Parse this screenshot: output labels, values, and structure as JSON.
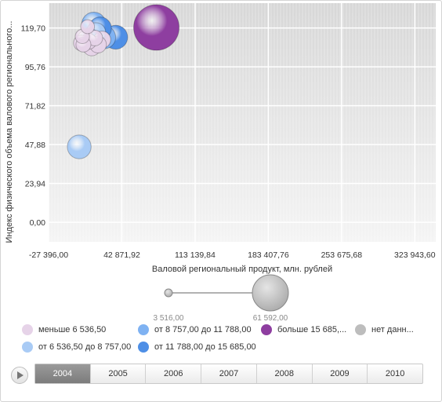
{
  "chart_data": {
    "type": "scatter",
    "xlabel": "Валовой региональный продукт, млн. рублей",
    "ylabel": "Индекс физического объема валового регионального...",
    "x_ticks": [
      "-27 396,00",
      "42 871,92",
      "113 139,84",
      "183 407,76",
      "253 675,68",
      "323 943,60"
    ],
    "x_tick_values": [
      -27396,
      42871.92,
      113139.84,
      183407.76,
      253675.68,
      323943.6
    ],
    "y_ticks": [
      "0,00",
      "23,94",
      "47,88",
      "71,82",
      "95,76",
      "119,70"
    ],
    "y_tick_values": [
      0,
      23.94,
      47.88,
      71.82,
      95.76,
      119.7
    ],
    "xlim": [
      -27396,
      344000
    ],
    "ylim": [
      -12,
      135
    ],
    "size_range": [
      3516,
      61592
    ],
    "size_legend_labels": [
      "3 516,00",
      "61 592,00"
    ],
    "points": [
      {
        "x": 2000,
        "y": 46.5,
        "size": 14000,
        "group": 1
      },
      {
        "x": 5000,
        "y": 114.5,
        "size": 5200,
        "group": 0
      },
      {
        "x": 4000,
        "y": 110.5,
        "size": 6000,
        "group": 0
      },
      {
        "x": 10000,
        "y": 120.5,
        "size": 5000,
        "group": 0
      },
      {
        "x": 12000,
        "y": 114.0,
        "size": 7500,
        "group": 1
      },
      {
        "x": 16000,
        "y": 122.0,
        "size": 14500,
        "group": 2
      },
      {
        "x": 22000,
        "y": 119.5,
        "size": 12500,
        "group": 3
      },
      {
        "x": 26000,
        "y": 114.0,
        "size": 12800,
        "group": 2
      },
      {
        "x": 37000,
        "y": 114.0,
        "size": 14000,
        "group": 3
      },
      {
        "x": 18000,
        "y": 117.0,
        "size": 9000,
        "group": 1
      },
      {
        "x": 14000,
        "y": 108.0,
        "size": 7500,
        "group": 0
      },
      {
        "x": 20000,
        "y": 109.5,
        "size": 6800,
        "group": 0
      },
      {
        "x": 11000,
        "y": 111.5,
        "size": 6200,
        "group": 0
      },
      {
        "x": 8000,
        "y": 113.0,
        "size": 6600,
        "group": 0
      },
      {
        "x": 24000,
        "y": 112.5,
        "size": 7000,
        "group": 0
      },
      {
        "x": 17000,
        "y": 113.5,
        "size": 6000,
        "group": 0
      },
      {
        "x": 6000,
        "y": 109.5,
        "size": 5600,
        "group": 0
      },
      {
        "x": 76000,
        "y": 120.0,
        "size": 61592,
        "group": 4
      }
    ]
  },
  "legend": {
    "items": [
      {
        "label": "меньше 6 536,50",
        "color": "#e6d3e8"
      },
      {
        "label": "от 8 757,00 до 11 788,00",
        "color": "#7fb2f2"
      },
      {
        "label": "больше 15 685,...",
        "color": "#8e3ea0"
      },
      {
        "label": "нет данн...",
        "color": "#bdbdbd"
      },
      {
        "label": "от 6 536,50 до 8 757,00",
        "color": "#a9cbf5"
      },
      {
        "label": "от 11 788,00 до 15 685,00",
        "color": "#4e8fe6"
      }
    ]
  },
  "timeline": {
    "years": [
      "2004",
      "2005",
      "2006",
      "2007",
      "2008",
      "2009",
      "2010"
    ],
    "active": "2004"
  }
}
